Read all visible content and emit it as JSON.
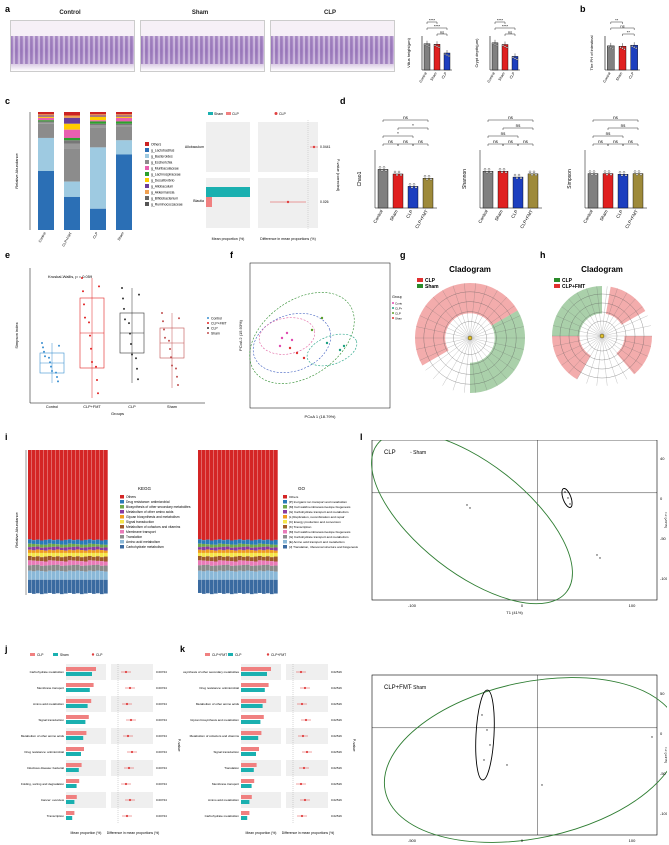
{
  "panels": {
    "a": {
      "letter": "a",
      "histology": [
        "Control",
        "Sham",
        "CLP"
      ],
      "bar1_ylabel": "Villus height(μm)",
      "bar2_ylabel": "Crypt depth(μm)",
      "groups": [
        "Control",
        "Sham",
        "CLP"
      ],
      "villus_values": [
        270,
        265,
        175
      ],
      "crypt_values": [
        160,
        150,
        80
      ],
      "sig": [
        "****",
        "****",
        "ns",
        "****",
        "****",
        "ns"
      ]
    },
    "b": {
      "letter": "b",
      "ylabel": "The PH of intestinal",
      "groups": [
        "Control",
        "Sham",
        "CLP"
      ],
      "values": [
        7.1,
        7.0,
        7.3
      ],
      "sig": [
        "**",
        "ns",
        "**"
      ]
    },
    "c": {
      "letter": "c",
      "ylabel": "Relative Abundance",
      "groups": [
        "Control",
        "CLP+FMT",
        "CLP",
        "Sham"
      ],
      "legend": [
        "Others",
        "g_Lactobacillus",
        "g_Bacteroides",
        "g_Escherichia",
        "g_Muribaculaceae",
        "g_Lachnospiraceae",
        "g_Desulfovibrio",
        "g_Allobaculum",
        "g_Akkermansia",
        "g_Bifidobacterium",
        "g_Ruminococcaceae"
      ],
      "legend_colors": [
        "#cc2222",
        "#2b6fb5",
        "#9ecae1",
        "#8c8c8c",
        "#e85fb0",
        "#2ca02c",
        "#ffcc00",
        "#6a3d9a",
        "#f0a050",
        "#666666",
        "#555555"
      ],
      "diff_legend": [
        "CLP",
        "Sham"
      ],
      "diff_rows": [
        "Allobaculum",
        "Blautia"
      ],
      "pvalues": [
        "0.0441",
        "0.026"
      ],
      "x1label": "Mean proportion (%)",
      "x2label": "Difference in mean proportions (%)",
      "p_label": "P-value (corrected)"
    },
    "d": {
      "letter": "d",
      "groups": [
        "Control",
        "Sham",
        "CLP",
        "CLP+FMT"
      ],
      "charts": [
        {
          "ylabel": "Chao1",
          "values": [
            1000,
            880,
            560,
            770
          ],
          "ylim": [
            0,
            1500
          ],
          "sig": [
            "ns",
            "ns",
            "ns",
            "*",
            "*",
            "ns",
            "ns"
          ]
        },
        {
          "ylabel": "Shannon",
          "values": [
            5.7,
            5.7,
            4.8,
            5.3
          ],
          "ylim": [
            0,
            9
          ],
          "sig": [
            "ns",
            "ns",
            "ns",
            "ns",
            "ns",
            "ns",
            "ns"
          ]
        },
        {
          "ylabel": "Simpson",
          "values": [
            0.95,
            0.95,
            0.93,
            0.95
          ],
          "ylim": [
            0,
            1.6
          ],
          "sig": [
            "ns",
            "ns",
            "ns",
            "ns",
            "ns",
            "ns"
          ]
        }
      ]
    },
    "e": {
      "letter": "e",
      "note": "Kruskal-Wallis, p = 0.059",
      "xlabel": "Groups",
      "ylabel": "Simpson index",
      "groups": [
        "Control",
        "CLP+FMT",
        "CLP",
        "Sham"
      ],
      "legend": [
        "Control",
        "CLP+FMT",
        "CLP",
        "Sham"
      ],
      "legend_colors": [
        "#3a8fd0",
        "#e02020",
        "#333333",
        "#c05050"
      ],
      "medians": [
        1.5,
        1.62,
        1.58,
        1.55
      ]
    },
    "f": {
      "letter": "f",
      "xlabel": "PCoA 1 (18.79%)",
      "ylabel": "PCoA 2 (15.93%)",
      "legend_title": "Group",
      "legend": [
        "Control",
        "CLP+FMT",
        "CLP",
        "Sham"
      ],
      "legend_colors": [
        "#e04bb0",
        "#1aa080",
        "#5a9f2a",
        "#e03030"
      ]
    },
    "g": {
      "letter": "g",
      "title": "Cladogram",
      "legend": [
        "CLP",
        "Sham"
      ],
      "colors": [
        "#e03030",
        "#2a8a2a"
      ]
    },
    "h": {
      "letter": "h",
      "title": "Cladogram",
      "legend": [
        "CLP",
        "CLP+FMT"
      ],
      "colors": [
        "#2a8a2a",
        "#e03030"
      ]
    },
    "i": {
      "letter": "i",
      "ylabel": "Relative Abundance",
      "kegg_title": "KEGG",
      "kegg_legend": [
        "Others",
        "Drug resistance: antimicrobial",
        "Biosynthesis of other secondary metabolites",
        "Metabolism of other amino acids",
        "Glycan biosynthesis and metabolism",
        "Signal transduction",
        "Metabolism of cofactors and vitamins",
        "Membrane transport",
        "Translation",
        "Amino acid metabolism",
        "Carbohydrate metabolism"
      ],
      "go_title": "GO",
      "go_legend": [
        "Others",
        "[P] Inorganic ion transport and metabolism",
        "[M] Cell wall/membrane/envelope biogenesis",
        "[G] Carbohydrate transport and metabolism",
        "[L] Replication, recombination and repair",
        "[C] Energy production and conversion",
        "[K] Transcription",
        "[M] Cell wall/membrane/envelope biogenesis",
        "[G] Carbohydrate transport and metabolism",
        "[E] Amino acid transport and metabolism",
        "[J] Translation, ribosomal structure and biogenesis"
      ],
      "colors": [
        "#d42525",
        "#2a7ab8",
        "#6fa84a",
        "#8a3aa0",
        "#f09c20",
        "#f5e64a",
        "#a05a2a",
        "#e97ab8",
        "#8c8c8c",
        "#8ab8d8",
        "#3a6aa0"
      ]
    },
    "l": {
      "letter": "l",
      "top_legend": [
        "CLP",
        "Sham"
      ],
      "bottom_legend": [
        "CLP+FMT",
        "Sham"
      ],
      "xlabel_top": "T1 (41%)",
      "ylabel_top": "T2 (29%)",
      "xlabel_bottom": "T1 (37%)",
      "ylabel_bottom": "T2 (14%)",
      "top_xticks": [
        "-100",
        "0",
        "100"
      ],
      "top_yticks": [
        "40",
        "0",
        "-50",
        "-100"
      ],
      "bottom_xticks": [
        "-500",
        "0",
        "100"
      ],
      "bottom_yticks": [
        "50",
        "0",
        "-50",
        "-100"
      ]
    },
    "j": {
      "letter": "j",
      "legend": [
        "CLP",
        "Sham"
      ],
      "rows": [
        "Carbohydrate metabolism",
        "Membrane transport",
        "Amino acid metabolism",
        "Signal transduction",
        "Metabolism of other amino acids",
        "Drug resistance: antimicrobial",
        "Infectious disease: bacterial",
        "Folding, sorting and degradation",
        "Cancer: overview",
        "Transcription"
      ],
      "pvalues": [
        "0.00724",
        "0.00724",
        "0.00724",
        "0.00724",
        "0.00724",
        "0.00724",
        "0.00724",
        "0.00724",
        "0.00724",
        "0.00724"
      ],
      "x1label": "Mean proportion (%)",
      "x2label": "Difference in mean proportions (%)",
      "p_label": "P-value"
    },
    "k": {
      "letter": "k",
      "legend": [
        "CLP+FMT",
        "CLP"
      ],
      "rows": [
        "Biosynthesis of other secondary metabolites",
        "Drug resistance: antimicrobial",
        "Metabolism of other amino acids",
        "Glycan biosynthesis and metabolism",
        "Metabolism of cofactors and vitamins",
        "Signal transduction",
        "Translation",
        "Membrane transport",
        "Amino acid metabolism",
        "Carbohydrate metabolism"
      ],
      "pvalues": [
        "0.02516",
        "0.02516",
        "0.02516",
        "0.02516",
        "0.02516",
        "0.02516",
        "0.02516",
        "0.02516",
        "0.02516",
        "0.02516"
      ],
      "x1label": "Mean proportion (%)",
      "x2label": "Difference in mean proportions (%)",
      "p_label": "P-value"
    }
  }
}
